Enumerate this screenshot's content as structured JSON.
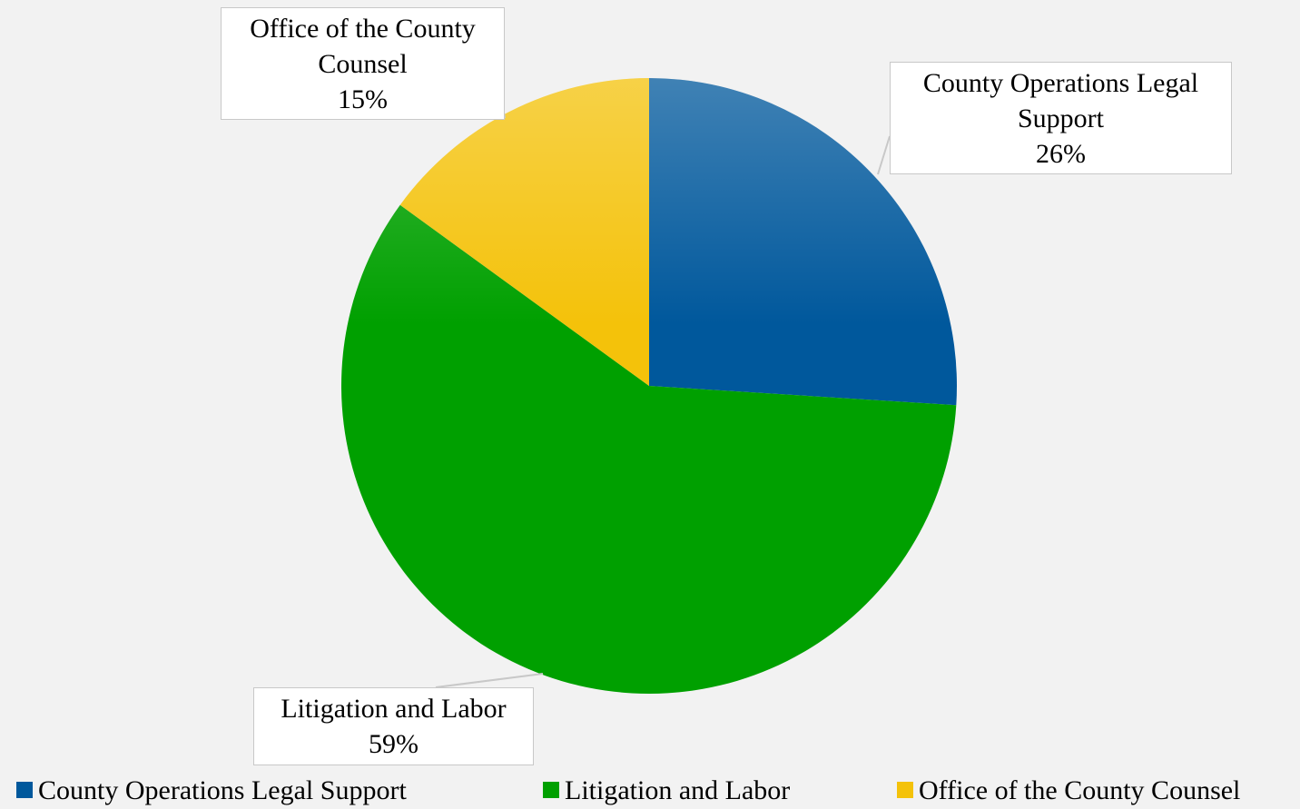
{
  "chart_data": {
    "type": "pie",
    "categories": [
      "County Operations Legal Support",
      "Litigation and Labor",
      "Office of the County Counsel"
    ],
    "values": [
      26,
      59,
      15
    ],
    "value_labels": [
      "26%",
      "59%",
      "15%"
    ],
    "colors": [
      "#00589c",
      "#00a000",
      "#f4c20a"
    ],
    "legend": "bottom"
  }
}
